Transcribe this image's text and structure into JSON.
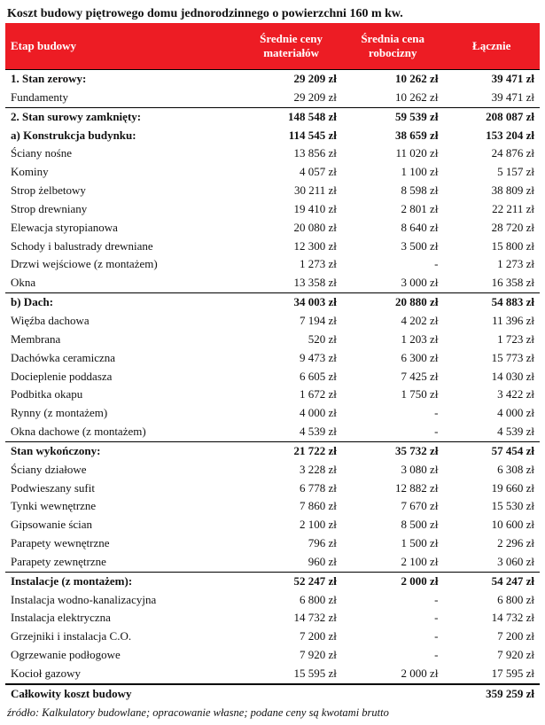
{
  "title": "Koszt budowy piętrowego domu jednorodzinnego o powierzchni 160 m kw.",
  "columns": [
    "Etap budowy",
    "Średnie ceny materiałów",
    "Średnia cena robocizny",
    "Łącznie"
  ],
  "rows": [
    {
      "sep": true,
      "bold": true,
      "label": "1. Stan zerowy:",
      "c1": "29 209 zł",
      "c2": "10 262 zł",
      "c3": "39 471 zł"
    },
    {
      "label": "Fundamenty",
      "c1": "29 209 zł",
      "c2": "10 262 zł",
      "c3": "39 471 zł"
    },
    {
      "sep": true,
      "bold": true,
      "label": "2. Stan surowy zamknięty:",
      "c1": "148 548 zł",
      "c2": "59 539 zł",
      "c3": "208 087 zł"
    },
    {
      "bold": true,
      "label": "a) Konstrukcja budynku:",
      "c1": "114 545 zł",
      "c2": "38 659 zł",
      "c3": "153 204 zł"
    },
    {
      "label": "Ściany nośne",
      "c1": "13 856 zł",
      "c2": "11 020 zł",
      "c3": "24 876 zł"
    },
    {
      "label": "Kominy",
      "c1": "4 057 zł",
      "c2": "1 100 zł",
      "c3": "5 157 zł"
    },
    {
      "label": "Strop żelbetowy",
      "c1": "30 211 zł",
      "c2": "8 598 zł",
      "c3": "38 809 zł"
    },
    {
      "label": "Strop drewniany",
      "c1": "19 410 zł",
      "c2": "2 801 zł",
      "c3": "22 211 zł"
    },
    {
      "label": "Elewacja styropianowa",
      "c1": "20 080 zł",
      "c2": "8 640 zł",
      "c3": "28 720 zł"
    },
    {
      "label": "Schody i balustrady drewniane",
      "c1": "12 300 zł",
      "c2": "3 500 zł",
      "c3": "15 800 zł"
    },
    {
      "label": "Drzwi wejściowe (z montażem)",
      "c1": "1 273 zł",
      "c2": "-",
      "c3": "1 273 zł"
    },
    {
      "label": "Okna",
      "c1": "13 358 zł",
      "c2": "3 000 zł",
      "c3": "16 358 zł"
    },
    {
      "sep": true,
      "bold": true,
      "label": "b) Dach:",
      "c1": "34 003 zł",
      "c2": "20 880 zł",
      "c3": "54 883 zł"
    },
    {
      "label": "Więźba dachowa",
      "c1": "7 194 zł",
      "c2": "4 202 zł",
      "c3": "11 396 zł"
    },
    {
      "label": "Membrana",
      "c1": "520 zł",
      "c2": "1 203 zł",
      "c3": "1 723 zł"
    },
    {
      "label": "Dachówka ceramiczna",
      "c1": "9 473 zł",
      "c2": "6 300 zł",
      "c3": "15 773 zł"
    },
    {
      "label": "Docieplenie poddasza",
      "c1": "6 605 zł",
      "c2": "7 425 zł",
      "c3": "14 030 zł"
    },
    {
      "label": "Podbitka okapu",
      "c1": "1 672 zł",
      "c2": "1 750 zł",
      "c3": "3 422 zł"
    },
    {
      "label": "Rynny (z montażem)",
      "c1": "4 000 zł",
      "c2": "-",
      "c3": "4 000 zł"
    },
    {
      "label": "Okna dachowe (z montażem)",
      "c1": "4 539 zł",
      "c2": "-",
      "c3": "4 539 zł"
    },
    {
      "sep": true,
      "bold": true,
      "label": "Stan wykończony:",
      "c1": "21 722 zł",
      "c2": "35 732 zł",
      "c3": "57 454 zł"
    },
    {
      "label": "Ściany działowe",
      "c1": "3 228 zł",
      "c2": "3 080 zł",
      "c3": "6 308 zł"
    },
    {
      "label": "Podwieszany sufit",
      "c1": "6 778 zł",
      "c2": "12 882 zł",
      "c3": "19 660 zł"
    },
    {
      "label": "Tynki wewnętrzne",
      "c1": "7 860 zł",
      "c2": "7 670 zł",
      "c3": "15 530 zł"
    },
    {
      "label": "Gipsowanie ścian",
      "c1": "2 100 zł",
      "c2": "8 500 zł",
      "c3": "10 600 zł"
    },
    {
      "label": "Parapety wewnętrzne",
      "c1": "796 zł",
      "c2": "1 500 zł",
      "c3": "2 296 zł"
    },
    {
      "label": "Parapety zewnętrzne",
      "c1": "960 zł",
      "c2": "2 100 zł",
      "c3": "3 060 zł"
    },
    {
      "sep": true,
      "bold": true,
      "label": "Instalacje (z montażem):",
      "c1": "52 247 zł",
      "c2": "2 000 zł",
      "c3": "54 247 zł"
    },
    {
      "label": "Instalacja wodno-kanalizacyjna",
      "c1": "6 800 zł",
      "c2": "-",
      "c3": "6 800 zł"
    },
    {
      "label": "Instalacja elektryczna",
      "c1": "14 732 zł",
      "c2": "-",
      "c3": "14 732 zł"
    },
    {
      "label": "Grzejniki i instalacja C.O.",
      "c1": "7 200 zł",
      "c2": "-",
      "c3": "7 200 zł"
    },
    {
      "label": "Ogrzewanie podłogowe",
      "c1": "7 920 zł",
      "c2": "-",
      "c3": "7 920 zł"
    },
    {
      "label": "Kocioł gazowy",
      "c1": "15 595 zł",
      "c2": "2 000 zł",
      "c3": "17 595 zł"
    }
  ],
  "total": {
    "label": "Całkowity koszt budowy",
    "value": "359 259 zł"
  },
  "source": "źródło: Kalkulatory budowlane; opracowanie własne; podane ceny są kwotami brutto",
  "colors": {
    "header_bg": "#ed1c24",
    "header_fg": "#ffffff",
    "text": "#111111",
    "rule": "#000000",
    "bg": "#ffffff"
  }
}
